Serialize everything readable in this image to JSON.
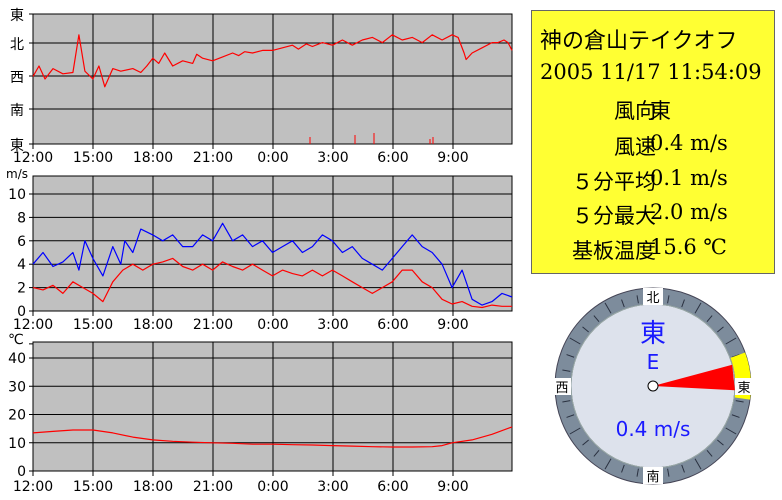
{
  "info": {
    "title": "神の倉山テイクオフ",
    "datetime": "2005 11/17 11:54:09",
    "rows": [
      {
        "label": "風向",
        "value": "東"
      },
      {
        "label": "風速",
        "value": "0.4 m/s"
      },
      {
        "label": "５分平均",
        "value": "0.1 m/s"
      },
      {
        "label": "５分最大",
        "value": "2.0 m/s"
      },
      {
        "label": "基板温度",
        "value": "15.6 ℃"
      }
    ]
  },
  "compass": {
    "direction_kanji": "東",
    "direction_letter": "E",
    "speed_text": "0.4 m/s",
    "cardinals": {
      "north": "北",
      "east": "東",
      "south": "南",
      "west": "西"
    },
    "needle_bearing_deg": 95,
    "arrow_color": "#ff0000",
    "sector_color": "#ffff00"
  },
  "chart_data": [
    {
      "type": "line",
      "name": "wind-direction",
      "ytick_labels": [
        "東",
        "北",
        "西",
        "南",
        "東"
      ],
      "x_tick_labels": [
        "12:00",
        "15:00",
        "18:00",
        "21:00",
        "0:00",
        "3:00",
        "6:00",
        "9:00"
      ],
      "x_range_hours": [
        0,
        24
      ],
      "series": [
        {
          "color": "#ff0000",
          "values": [
            [
              0,
              48
            ],
            [
              0.3,
              40
            ],
            [
              0.6,
              50
            ],
            [
              1,
              42
            ],
            [
              1.5,
              46
            ],
            [
              2,
              45
            ],
            [
              2.3,
              16
            ],
            [
              2.6,
              44
            ],
            [
              3,
              50
            ],
            [
              3.3,
              40
            ],
            [
              3.6,
              56
            ],
            [
              4,
              42
            ],
            [
              4.4,
              44
            ],
            [
              5,
              42
            ],
            [
              5.4,
              45
            ],
            [
              5.7,
              40
            ],
            [
              6,
              34
            ],
            [
              6.3,
              38
            ],
            [
              6.6,
              30
            ],
            [
              7,
              40
            ],
            [
              7.5,
              36
            ],
            [
              8,
              38
            ],
            [
              8.2,
              31
            ],
            [
              8.5,
              34
            ],
            [
              9,
              36
            ],
            [
              9.5,
              33
            ],
            [
              10,
              30
            ],
            [
              10.3,
              32
            ],
            [
              10.6,
              29
            ],
            [
              11,
              30
            ],
            [
              11.5,
              28
            ],
            [
              12,
              28
            ],
            [
              12.5,
              26
            ],
            [
              13,
              24
            ],
            [
              13.3,
              27
            ],
            [
              13.7,
              23
            ],
            [
              14,
              25
            ],
            [
              14.5,
              22
            ],
            [
              15,
              24
            ],
            [
              15.5,
              20
            ],
            [
              16,
              24
            ],
            [
              16.5,
              20
            ],
            [
              17,
              18
            ],
            [
              17.5,
              22
            ],
            [
              18,
              16
            ],
            [
              18.5,
              20
            ],
            [
              19,
              18
            ],
            [
              19.5,
              22
            ],
            [
              20,
              16
            ],
            [
              20.5,
              20
            ],
            [
              21,
              16
            ],
            [
              21.3,
              18
            ],
            [
              21.6,
              30
            ],
            [
              21.7,
              35
            ],
            [
              22,
              30
            ],
            [
              22.5,
              26
            ],
            [
              23,
              22
            ],
            [
              23.3,
              22
            ],
            [
              23.6,
              20
            ],
            [
              23.8,
              22
            ],
            [
              24,
              28
            ]
          ]
        }
      ]
    },
    {
      "type": "line",
      "name": "wind-speed",
      "unit_label": "m/s",
      "ylim": [
        0,
        10
      ],
      "yticks": [
        0,
        2,
        4,
        6,
        8,
        10
      ],
      "x_tick_labels": [
        "12:00",
        "15:00",
        "18:00",
        "21:00",
        "0:00",
        "3:00",
        "6:00",
        "9:00"
      ],
      "x_range_hours": [
        0,
        24
      ],
      "series": [
        {
          "color": "#0000ff",
          "values": [
            [
              0,
              4.0
            ],
            [
              0.5,
              5.0
            ],
            [
              1,
              3.8
            ],
            [
              1.5,
              4.2
            ],
            [
              2,
              5.0
            ],
            [
              2.3,
              3.5
            ],
            [
              2.6,
              6.0
            ],
            [
              3,
              4.5
            ],
            [
              3.5,
              3.0
            ],
            [
              4,
              5.5
            ],
            [
              4.4,
              4.0
            ],
            [
              4.6,
              6.0
            ],
            [
              5,
              5.0
            ],
            [
              5.4,
              7.0
            ],
            [
              6,
              6.5
            ],
            [
              6.5,
              6.0
            ],
            [
              7,
              6.5
            ],
            [
              7.5,
              5.5
            ],
            [
              8,
              5.5
            ],
            [
              8.5,
              6.5
            ],
            [
              9,
              6.0
            ],
            [
              9.5,
              7.5
            ],
            [
              10,
              6.0
            ],
            [
              10.5,
              6.5
            ],
            [
              11,
              5.5
            ],
            [
              11.5,
              6.0
            ],
            [
              12,
              5.0
            ],
            [
              12.5,
              5.5
            ],
            [
              13,
              6.0
            ],
            [
              13.5,
              5.0
            ],
            [
              14,
              5.5
            ],
            [
              14.5,
              6.5
            ],
            [
              15,
              6.0
            ],
            [
              15.5,
              5.0
            ],
            [
              16,
              5.5
            ],
            [
              16.5,
              4.5
            ],
            [
              17,
              4.0
            ],
            [
              17.5,
              3.5
            ],
            [
              18,
              4.5
            ],
            [
              18.5,
              5.5
            ],
            [
              19,
              6.5
            ],
            [
              19.5,
              5.5
            ],
            [
              20,
              5.0
            ],
            [
              20.5,
              4.0
            ],
            [
              21,
              2.0
            ],
            [
              21.5,
              3.5
            ],
            [
              22,
              1.0
            ],
            [
              22.5,
              0.5
            ],
            [
              23,
              0.8
            ],
            [
              23.5,
              1.5
            ],
            [
              24,
              1.2
            ]
          ]
        },
        {
          "color": "#ff0000",
          "values": [
            [
              0,
              2.0
            ],
            [
              0.5,
              1.8
            ],
            [
              1,
              2.2
            ],
            [
              1.5,
              1.5
            ],
            [
              2,
              2.5
            ],
            [
              2.5,
              2.0
            ],
            [
              3,
              1.5
            ],
            [
              3.5,
              0.8
            ],
            [
              4,
              2.5
            ],
            [
              4.5,
              3.5
            ],
            [
              5,
              4.0
            ],
            [
              5.5,
              3.5
            ],
            [
              6,
              4.0
            ],
            [
              6.5,
              4.2
            ],
            [
              7,
              4.5
            ],
            [
              7.5,
              3.8
            ],
            [
              8,
              3.5
            ],
            [
              8.5,
              4.0
            ],
            [
              9,
              3.5
            ],
            [
              9.5,
              4.2
            ],
            [
              10,
              3.8
            ],
            [
              10.5,
              3.5
            ],
            [
              11,
              4.0
            ],
            [
              11.5,
              3.5
            ],
            [
              12,
              3.0
            ],
            [
              12.5,
              3.5
            ],
            [
              13,
              3.2
            ],
            [
              13.5,
              3.0
            ],
            [
              14,
              3.5
            ],
            [
              14.5,
              3.0
            ],
            [
              15,
              3.5
            ],
            [
              15.5,
              3.0
            ],
            [
              16,
              2.5
            ],
            [
              16.5,
              2.0
            ],
            [
              17,
              1.5
            ],
            [
              17.5,
              2.0
            ],
            [
              18,
              2.5
            ],
            [
              18.5,
              3.5
            ],
            [
              19,
              3.5
            ],
            [
              19.5,
              2.5
            ],
            [
              20,
              2.0
            ],
            [
              20.5,
              1.0
            ],
            [
              21,
              0.6
            ],
            [
              21.5,
              0.8
            ],
            [
              22,
              0.4
            ],
            [
              22.5,
              0.3
            ],
            [
              23,
              0.5
            ],
            [
              23.5,
              0.4
            ],
            [
              24,
              0.4
            ]
          ]
        }
      ]
    },
    {
      "type": "line",
      "name": "temperature",
      "unit_label": "℃",
      "ylim": [
        0,
        45
      ],
      "yticks": [
        0,
        10,
        20,
        30,
        40
      ],
      "x_tick_labels": [
        "12:00",
        "15:00",
        "18:00",
        "21:00",
        "0:00",
        "3:00",
        "6:00",
        "9:00"
      ],
      "x_range_hours": [
        0,
        24
      ],
      "series": [
        {
          "color": "#ff0000",
          "values": [
            [
              0,
              13.5
            ],
            [
              1,
              14.0
            ],
            [
              2,
              14.5
            ],
            [
              3,
              14.5
            ],
            [
              4,
              13.5
            ],
            [
              5,
              12.0
            ],
            [
              6,
              11.0
            ],
            [
              7,
              10.5
            ],
            [
              8,
              10.2
            ],
            [
              9,
              10.0
            ],
            [
              10,
              9.8
            ],
            [
              11,
              9.5
            ],
            [
              12,
              9.5
            ],
            [
              13,
              9.3
            ],
            [
              14,
              9.2
            ],
            [
              15,
              9.0
            ],
            [
              16,
              8.8
            ],
            [
              17,
              8.6
            ],
            [
              18,
              8.5
            ],
            [
              19,
              8.5
            ],
            [
              20,
              8.6
            ],
            [
              20.5,
              9.0
            ],
            [
              21,
              10.0
            ],
            [
              22,
              11.0
            ],
            [
              23,
              13.0
            ],
            [
              24,
              15.6
            ]
          ]
        }
      ]
    }
  ]
}
